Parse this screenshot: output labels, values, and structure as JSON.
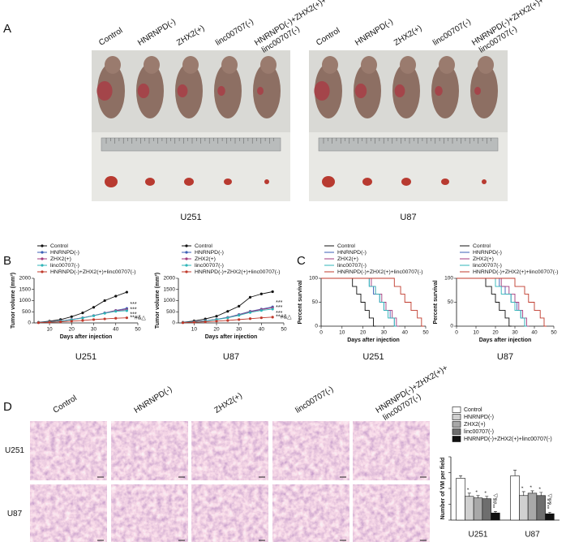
{
  "panel_labels": [
    "A",
    "B",
    "C",
    "D"
  ],
  "panel_a": {
    "groups": [
      [
        "Control"
      ],
      [
        "HNRNPD(-)"
      ],
      [
        "ZHX2(+)"
      ],
      [
        "linc00707(-)"
      ],
      [
        "HNRNPD(-)+ZHX2(+)+",
        "linc00707(-)"
      ]
    ],
    "cell_lines": [
      "U251",
      "U87"
    ]
  },
  "chart_data": [
    {
      "type": "line",
      "title": "U251",
      "xlabel": "Days after injection",
      "ylabel": "Tumor volume (mm³)",
      "x": [
        5,
        10,
        15,
        20,
        25,
        30,
        35,
        40,
        45
      ],
      "xlim": [
        3,
        50
      ],
      "xticks": [
        10,
        20,
        30,
        40,
        50
      ],
      "ylim": [
        0,
        2000
      ],
      "yticks": [
        0,
        500,
        1000,
        1500,
        2000
      ],
      "series": [
        {
          "name": "Control",
          "color": "#111111",
          "values": [
            30,
            80,
            150,
            280,
            450,
            700,
            1000,
            1200,
            1380
          ]
        },
        {
          "name": "HNRNPD(-)",
          "color": "#3a5fb5",
          "values": [
            20,
            50,
            90,
            150,
            230,
            330,
            450,
            560,
            650
          ],
          "annotation": "***"
        },
        {
          "name": "ZHX2(+)",
          "color": "#a23a7c",
          "values": [
            20,
            50,
            90,
            150,
            230,
            330,
            440,
            550,
            600
          ],
          "annotation": "***"
        },
        {
          "name": "linc00707(-)",
          "color": "#2fb5b8",
          "values": [
            20,
            45,
            85,
            140,
            220,
            320,
            430,
            520,
            550
          ],
          "annotation": "***"
        },
        {
          "name": "HNRNPD(-)+ZHX2(+)+linc00707(-)",
          "color": "#c0392b",
          "values": [
            10,
            30,
            50,
            80,
            110,
            150,
            180,
            210,
            230
          ],
          "annotation": "**#&△"
        }
      ]
    },
    {
      "type": "line",
      "title": "U87",
      "xlabel": "Days after injection",
      "ylabel": "Tumor volume (mm³)",
      "x": [
        5,
        10,
        15,
        20,
        25,
        30,
        35,
        40,
        45
      ],
      "xlim": [
        3,
        50
      ],
      "xticks": [
        10,
        20,
        30,
        40,
        50
      ],
      "ylim": [
        0,
        2000
      ],
      "yticks": [
        0,
        500,
        1000,
        1500,
        2000
      ],
      "series": [
        {
          "name": "Control",
          "color": "#111111",
          "values": [
            30,
            90,
            180,
            300,
            520,
            750,
            1150,
            1300,
            1400
          ]
        },
        {
          "name": "HNRNPD(-)",
          "color": "#3a5fb5",
          "values": [
            20,
            50,
            100,
            160,
            250,
            380,
            520,
            620,
            720
          ],
          "annotation": "***"
        },
        {
          "name": "ZHX2(+)",
          "color": "#a23a7c",
          "values": [
            20,
            50,
            100,
            160,
            240,
            360,
            500,
            600,
            680
          ],
          "annotation": "***"
        },
        {
          "name": "linc00707(-)",
          "color": "#2fb5b8",
          "values": [
            20,
            45,
            90,
            150,
            230,
            340,
            470,
            560,
            620
          ],
          "annotation": "***"
        },
        {
          "name": "HNRNPD(-)+ZHX2(+)+linc00707(-)",
          "color": "#c0392b",
          "values": [
            10,
            30,
            50,
            80,
            110,
            150,
            190,
            230,
            260
          ],
          "annotation": "**#&△"
        }
      ]
    },
    {
      "type": "step",
      "title": "U251",
      "xlabel": "Days after injection",
      "ylabel": "Percent survival",
      "xlim": [
        0,
        50
      ],
      "xticks": [
        0,
        10,
        20,
        30,
        40,
        50
      ],
      "ylim": [
        0,
        100
      ],
      "yticks": [
        0,
        50,
        100
      ],
      "series": [
        {
          "name": "Control",
          "color": "#111111",
          "x": [
            0,
            15,
            17,
            19,
            21,
            23,
            25
          ],
          "values": [
            100,
            83,
            67,
            50,
            33,
            17,
            0
          ]
        },
        {
          "name": "HNRNPD(-)",
          "color": "#3a5fb5",
          "x": [
            0,
            23,
            25,
            28,
            30,
            33,
            35
          ],
          "values": [
            100,
            83,
            67,
            50,
            33,
            17,
            0
          ]
        },
        {
          "name": "ZHX2(+)",
          "color": "#a23a7c",
          "x": [
            0,
            24,
            26,
            29,
            31,
            34,
            36
          ],
          "values": [
            100,
            83,
            67,
            50,
            33,
            17,
            0
          ]
        },
        {
          "name": "linc00707(-)",
          "color": "#2fb5b8",
          "x": [
            0,
            23,
            26,
            28,
            30,
            32,
            35
          ],
          "values": [
            100,
            83,
            67,
            50,
            33,
            17,
            0
          ]
        },
        {
          "name": "HNRNPD(-)+ZHX2(+)+linc00707(-)",
          "color": "#c0392b",
          "x": [
            0,
            35,
            38,
            40,
            43,
            46,
            48
          ],
          "values": [
            100,
            83,
            67,
            50,
            33,
            17,
            0
          ]
        }
      ]
    },
    {
      "type": "step",
      "title": "U87",
      "xlabel": "Days after injection",
      "ylabel": "Percent survival",
      "xlim": [
        0,
        50
      ],
      "xticks": [
        0,
        10,
        20,
        30,
        40,
        50
      ],
      "ylim": [
        0,
        100
      ],
      "yticks": [
        0,
        50,
        100
      ],
      "series": [
        {
          "name": "Control",
          "color": "#111111",
          "x": [
            0,
            15,
            18,
            20,
            22,
            25,
            27
          ],
          "values": [
            100,
            83,
            67,
            50,
            33,
            17,
            0
          ]
        },
        {
          "name": "HNRNPD(-)",
          "color": "#3a5fb5",
          "x": [
            0,
            22,
            25,
            28,
            31,
            33,
            35
          ],
          "values": [
            100,
            83,
            67,
            50,
            33,
            17,
            0
          ]
        },
        {
          "name": "ZHX2(+)",
          "color": "#a23a7c",
          "x": [
            0,
            23,
            27,
            30,
            32,
            34,
            36
          ],
          "values": [
            100,
            83,
            67,
            50,
            33,
            17,
            0
          ]
        },
        {
          "name": "linc00707(-)",
          "color": "#2fb5b8",
          "x": [
            0,
            20,
            23,
            28,
            30,
            33,
            35
          ],
          "values": [
            100,
            83,
            67,
            50,
            33,
            17,
            0
          ]
        },
        {
          "name": "HNRNPD(-)+ZHX2(+)+linc00707(-)",
          "color": "#c0392b",
          "x": [
            0,
            30,
            35,
            37,
            40,
            43,
            45
          ],
          "values": [
            100,
            83,
            67,
            50,
            33,
            17,
            0
          ]
        }
      ]
    },
    {
      "type": "bar",
      "ylabel": "Number of VM per field",
      "categories": [
        "U251",
        "U87"
      ],
      "ylim": [
        0,
        8
      ],
      "yticks": [
        0,
        2,
        4,
        6,
        8
      ],
      "series": [
        {
          "name": "Control",
          "color": "#ffffff",
          "values": [
            5.3,
            5.6
          ],
          "errors": [
            0.3,
            0.7
          ]
        },
        {
          "name": "HNRNPD(-)",
          "color": "#d0d0d0",
          "values": [
            3.0,
            3.1
          ],
          "errors": [
            0.4,
            0.5
          ],
          "notes": [
            "*",
            "*"
          ]
        },
        {
          "name": "ZHX2(+)",
          "color": "#a8a8a8",
          "values": [
            2.8,
            3.4
          ],
          "errors": [
            0.3,
            0.3
          ],
          "notes": [
            "*",
            "*"
          ]
        },
        {
          "name": "linc00707(-)",
          "color": "#6e6e6e",
          "values": [
            2.7,
            3.1
          ],
          "errors": [
            0.3,
            0.4
          ],
          "notes": [
            "*",
            "*"
          ]
        },
        {
          "name": "HNRNPD(-)+ZHX2(+)+linc00707(-)",
          "color": "#111111",
          "values": [
            0.9,
            0.8
          ],
          "errors": [
            0.2,
            0.2
          ],
          "notes": [
            "**#&△",
            "**&&△"
          ]
        }
      ]
    }
  ],
  "panel_d": {
    "groups": [
      [
        "Control"
      ],
      [
        "HNRNPD(-)"
      ],
      [
        "ZHX2(+)"
      ],
      [
        "linc00707(-)"
      ],
      [
        "HNRNPD(-)+ZHX2(+)+",
        "linc00707(-)"
      ]
    ],
    "cell_lines": [
      "U251",
      "U87"
    ]
  }
}
